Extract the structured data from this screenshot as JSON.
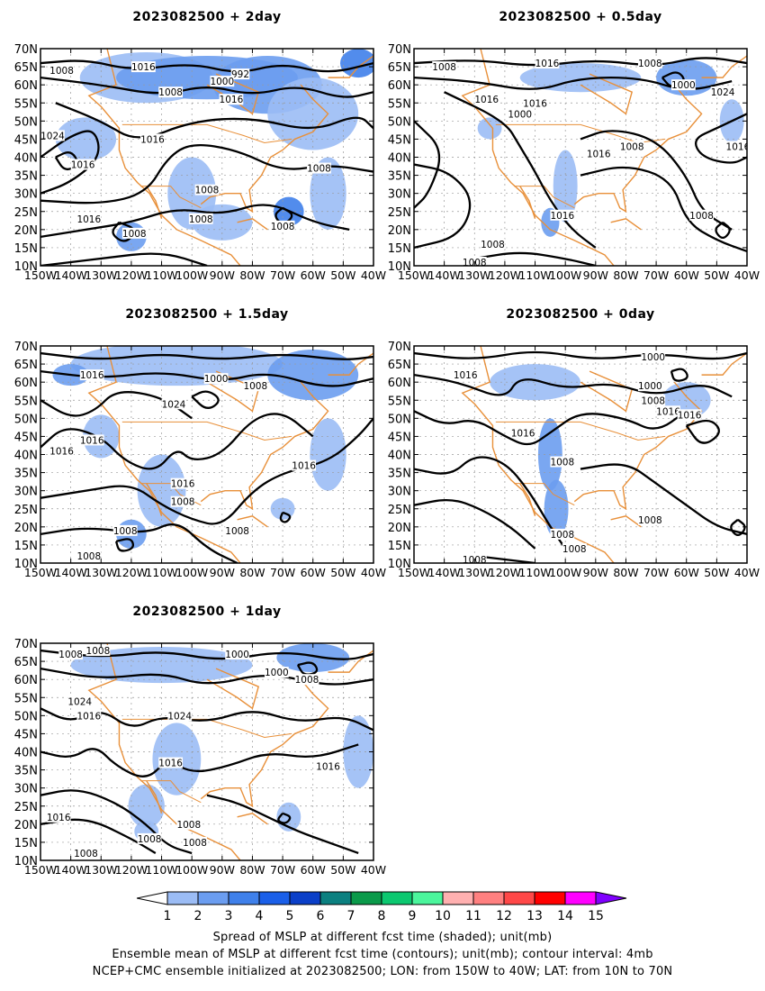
{
  "panels": [
    {
      "id": "p1",
      "title": "2023082500  +  2day"
    },
    {
      "id": "p2",
      "title": "2023082500  +  0.5day"
    },
    {
      "id": "p3",
      "title": "2023082500  +  1.5day"
    },
    {
      "id": "p4",
      "title": "2023082500  +  0day"
    },
    {
      "id": "p5",
      "title": "2023082500  +  1day"
    }
  ],
  "lat_labels": [
    "70N",
    "65N",
    "60N",
    "55N",
    "50N",
    "45N",
    "40N",
    "35N",
    "30N",
    "25N",
    "20N",
    "15N",
    "10N"
  ],
  "lon_labels": [
    "150W",
    "140W",
    "130W",
    "120W",
    "110W",
    "100W",
    "90W",
    "80W",
    "70W",
    "60W",
    "50W",
    "40W"
  ],
  "contour_labels": {
    "p1": [
      "1008",
      "1016",
      "992",
      "1000",
      "1008",
      "1016",
      "1024",
      "1016",
      "1016",
      "1016",
      "1008",
      "1008",
      "1008",
      "1008",
      "1008"
    ],
    "p2": [
      "1008",
      "1016",
      "1008",
      "1000",
      "1000",
      "1016",
      "1024",
      "1016",
      "1008",
      "1016",
      "1016",
      "1016",
      "1008",
      "1008",
      "1008"
    ],
    "p3": [
      "1016",
      "1000",
      "1008",
      "1024",
      "1016",
      "1016",
      "1016",
      "1016",
      "1008",
      "1008",
      "1008",
      "1008"
    ],
    "p4": [
      "1016",
      "1000",
      "1000",
      "1008",
      "1016",
      "1016",
      "1016",
      "1008",
      "1008",
      "1008",
      "1008",
      "1008"
    ],
    "p5": [
      "1008",
      "1008",
      "1024",
      "1016",
      "1000",
      "1000",
      "1008",
      "1024",
      "1016",
      "1016",
      "1016",
      "1008",
      "1008",
      "1008",
      "1008"
    ]
  },
  "colorbar": {
    "labels": [
      "1",
      "2",
      "3",
      "4",
      "5",
      "6",
      "7",
      "8",
      "9",
      "10",
      "11",
      "12",
      "13",
      "14",
      "15"
    ],
    "colors": [
      "#ffffff",
      "#9bbcf5",
      "#6b9df0",
      "#3f80ea",
      "#1a5fe8",
      "#0a3fc8",
      "#0b8080",
      "#0a9a4a",
      "#0cc870",
      "#4bf59c",
      "#ffb0b0",
      "#ff8080",
      "#ff4848",
      "#ff0000",
      "#ff00ff",
      "#8000ff"
    ]
  },
  "footer": {
    "line1": "Spread of MSLP at different fcst time (shaded); unit(mb)",
    "line2": "Ensemble mean of MSLP at different fcst time (contours); unit(mb); contour interval: 4mb",
    "line3": "NCEP+CMC ensemble initialized at 2023082500; LON: from 150W to 40W; LAT: from 10N to 70N"
  }
}
